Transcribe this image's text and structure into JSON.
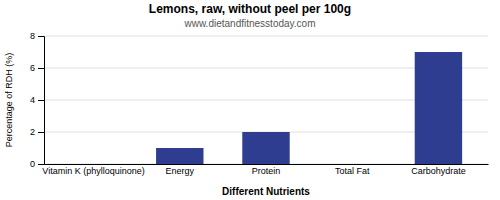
{
  "chart_data": {
    "type": "bar",
    "title": "Lemons, raw, without peel per 100g",
    "subtitle": "www.dietandfitnesstoday.com",
    "xlabel": "Different Nutrients",
    "ylabel": "Percentage of RDH (%)",
    "categories": [
      "Vitamin K (phylloquinone)",
      "Energy",
      "Protein",
      "Total Fat",
      "Carbohydrate"
    ],
    "values": [
      0,
      1,
      2,
      0,
      7
    ],
    "color": "#2e3d8f",
    "ylim": [
      0,
      8
    ],
    "yticks": [
      0,
      2,
      4,
      6,
      8
    ],
    "grid": true
  }
}
